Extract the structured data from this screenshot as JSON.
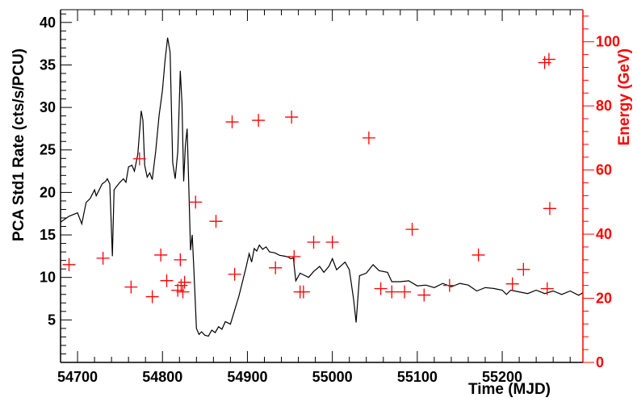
{
  "chart_data": {
    "type": "line+scatter",
    "xlabel": "Time (MJD)",
    "ylabel_left": "PCA Std1 Rate (cts/s/PCU)",
    "ylabel_right": "Energy (GeV)",
    "xlim": [
      54680,
      55295
    ],
    "ylim_left": [
      0,
      41.5
    ],
    "ylim_right": [
      0,
      110
    ],
    "x_ticks": [
      54700,
      54800,
      54900,
      55000,
      55100,
      55200
    ],
    "x_tick_labels": [
      "54700",
      "54800",
      "54900",
      "55000",
      "55100",
      "55200"
    ],
    "y_left_ticks": [
      5,
      10,
      15,
      20,
      25,
      30,
      35,
      40
    ],
    "y_left_tick_labels": [
      "5",
      "10",
      "15",
      "20",
      "25",
      "30",
      "35",
      "40"
    ],
    "y_right_ticks": [
      0,
      20,
      40,
      60,
      80,
      100
    ],
    "y_right_tick_labels": [
      "0",
      "20",
      "40",
      "60",
      "80",
      "100"
    ],
    "colors": {
      "line": "#000000",
      "markers": "#ff0000",
      "right_axis": "#ff0000",
      "left_axis": "#000000"
    },
    "series": [
      {
        "axis": "left",
        "style": "line",
        "points": [
          [
            54680,
            16.5
          ],
          [
            54690,
            17.2
          ],
          [
            54700,
            17.6
          ],
          [
            54705,
            16.3
          ],
          [
            54710,
            18.8
          ],
          [
            54715,
            19.3
          ],
          [
            54720,
            20.3
          ],
          [
            54722,
            19.6
          ],
          [
            54726,
            20.4
          ],
          [
            54729,
            21.0
          ],
          [
            54733,
            21.3
          ],
          [
            54735,
            21.6
          ],
          [
            54738,
            21.0
          ],
          [
            54741,
            12.5
          ],
          [
            54743,
            20.3
          ],
          [
            54746,
            20.7
          ],
          [
            54750,
            21.2
          ],
          [
            54754,
            21.6
          ],
          [
            54757,
            21.2
          ],
          [
            54760,
            23.0
          ],
          [
            54764,
            23.2
          ],
          [
            54767,
            22.5
          ],
          [
            54771,
            24.5
          ],
          [
            54775,
            29.6
          ],
          [
            54777,
            28.5
          ],
          [
            54779,
            23.2
          ],
          [
            54782,
            21.8
          ],
          [
            54785,
            22.3
          ],
          [
            54788,
            21.5
          ],
          [
            54792,
            24.8
          ],
          [
            54796,
            29.0
          ],
          [
            54800,
            32.0
          ],
          [
            54803,
            35.5
          ],
          [
            54806,
            38.2
          ],
          [
            54809,
            36.5
          ],
          [
            54812,
            23.5
          ],
          [
            54815,
            21.6
          ],
          [
            54818,
            24.8
          ],
          [
            54821,
            34.3
          ],
          [
            54823,
            30.5
          ],
          [
            54825,
            21.3
          ],
          [
            54827,
            25.5
          ],
          [
            54829,
            27.5
          ],
          [
            54831,
            20.5
          ],
          [
            54833,
            13.2
          ],
          [
            54835,
            15.0
          ],
          [
            54837,
            10.8
          ],
          [
            54840,
            4.0
          ],
          [
            54843,
            3.3
          ],
          [
            54846,
            3.6
          ],
          [
            54850,
            3.2
          ],
          [
            54854,
            3.1
          ],
          [
            54858,
            3.8
          ],
          [
            54862,
            3.5
          ],
          [
            54866,
            4.2
          ],
          [
            54870,
            3.9
          ],
          [
            54874,
            4.8
          ],
          [
            54880,
            4.5
          ],
          [
            54890,
            7.8
          ],
          [
            54898,
            11.0
          ],
          [
            54902,
            12.8
          ],
          [
            54905,
            11.8
          ],
          [
            54908,
            13.4
          ],
          [
            54911,
            13.1
          ],
          [
            54914,
            13.8
          ],
          [
            54918,
            13.3
          ],
          [
            54922,
            13.6
          ],
          [
            54926,
            13.0
          ],
          [
            54932,
            12.9
          ],
          [
            54938,
            12.6
          ],
          [
            54944,
            12.5
          ],
          [
            54948,
            12.4
          ],
          [
            54951,
            12.2
          ],
          [
            54954,
            12.3
          ],
          [
            54957,
            9.6
          ],
          [
            54962,
            10.5
          ],
          [
            54966,
            10.3
          ],
          [
            54972,
            10.0
          ],
          [
            54978,
            10.7
          ],
          [
            54985,
            11.3
          ],
          [
            54990,
            10.6
          ],
          [
            54996,
            11.3
          ],
          [
            55000,
            12.2
          ],
          [
            55005,
            10.9
          ],
          [
            55015,
            11.8
          ],
          [
            55020,
            10.9
          ],
          [
            55025,
            7.4
          ],
          [
            55028,
            4.7
          ],
          [
            55032,
            10.2
          ],
          [
            55040,
            10.5
          ],
          [
            55048,
            11.5
          ],
          [
            55055,
            10.8
          ],
          [
            55065,
            10.6
          ],
          [
            55070,
            9.5
          ],
          [
            55080,
            9.5
          ],
          [
            55090,
            9.6
          ],
          [
            55100,
            9.0
          ],
          [
            55110,
            9.1
          ],
          [
            55120,
            8.8
          ],
          [
            55130,
            9.3
          ],
          [
            55140,
            8.9
          ],
          [
            55150,
            9.3
          ],
          [
            55160,
            9.1
          ],
          [
            55170,
            8.4
          ],
          [
            55180,
            8.8
          ],
          [
            55190,
            8.7
          ],
          [
            55200,
            8.5
          ],
          [
            55205,
            8.0
          ],
          [
            55210,
            8.5
          ],
          [
            55220,
            8.3
          ],
          [
            55230,
            8.1
          ],
          [
            55240,
            8.5
          ],
          [
            55250,
            8.1
          ],
          [
            55260,
            8.4
          ],
          [
            55270,
            8.0
          ],
          [
            55280,
            8.4
          ],
          [
            55290,
            7.9
          ],
          [
            55295,
            8.2
          ]
        ]
      },
      {
        "axis": "right",
        "style": "cross",
        "points": [
          [
            54690,
            30.5
          ],
          [
            54730,
            32.5
          ],
          [
            54763,
            23.5
          ],
          [
            54773,
            63.5
          ],
          [
            54788,
            20.5
          ],
          [
            54798,
            33.5
          ],
          [
            54805,
            25.5
          ],
          [
            54818,
            22.5
          ],
          [
            54821,
            32.0
          ],
          [
            54822,
            24.0
          ],
          [
            54824,
            22.0
          ],
          [
            54826,
            25.0
          ],
          [
            54839,
            50.0
          ],
          [
            54863,
            44.0
          ],
          [
            54882,
            75.0
          ],
          [
            54885,
            27.5
          ],
          [
            54913,
            75.5
          ],
          [
            54933,
            29.5
          ],
          [
            54952,
            76.5
          ],
          [
            54955,
            33.0
          ],
          [
            54962,
            22.0
          ],
          [
            54966,
            22.0
          ],
          [
            54978,
            37.5
          ],
          [
            55000,
            37.5
          ],
          [
            55043,
            70.0
          ],
          [
            55057,
            23.0
          ],
          [
            55070,
            22.0
          ],
          [
            55085,
            22.0
          ],
          [
            55094,
            41.5
          ],
          [
            55108,
            21.0
          ],
          [
            55138,
            24.0
          ],
          [
            55172,
            33.5
          ],
          [
            55212,
            24.5
          ],
          [
            55225,
            29.0
          ],
          [
            55250,
            93.5
          ],
          [
            55253,
            23.0
          ],
          [
            55255,
            94.5
          ],
          [
            55256,
            48.0
          ]
        ]
      }
    ]
  }
}
